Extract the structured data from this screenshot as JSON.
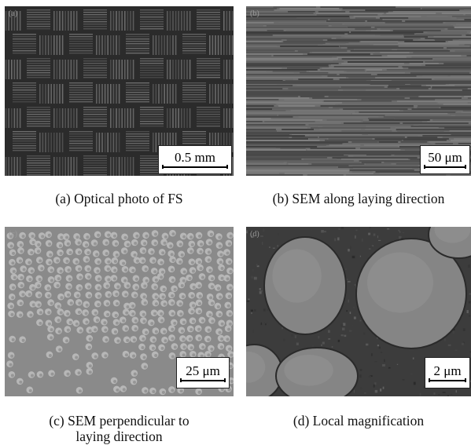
{
  "panels": {
    "a": {
      "tag": "(a)",
      "scale": "0.5 mm",
      "caption": "(a) Optical photo of FS"
    },
    "b": {
      "tag": "(b)",
      "scale": "50 μm",
      "caption": "(b) SEM along laying direction"
    },
    "c": {
      "tag": "(c)",
      "scale": "25 μm",
      "caption_line1": "(c) SEM perpendicular to",
      "caption_line2": "laying direction"
    },
    "d": {
      "tag": "(d)",
      "scale": "2 μm",
      "caption": "(d) Local magnification"
    }
  }
}
